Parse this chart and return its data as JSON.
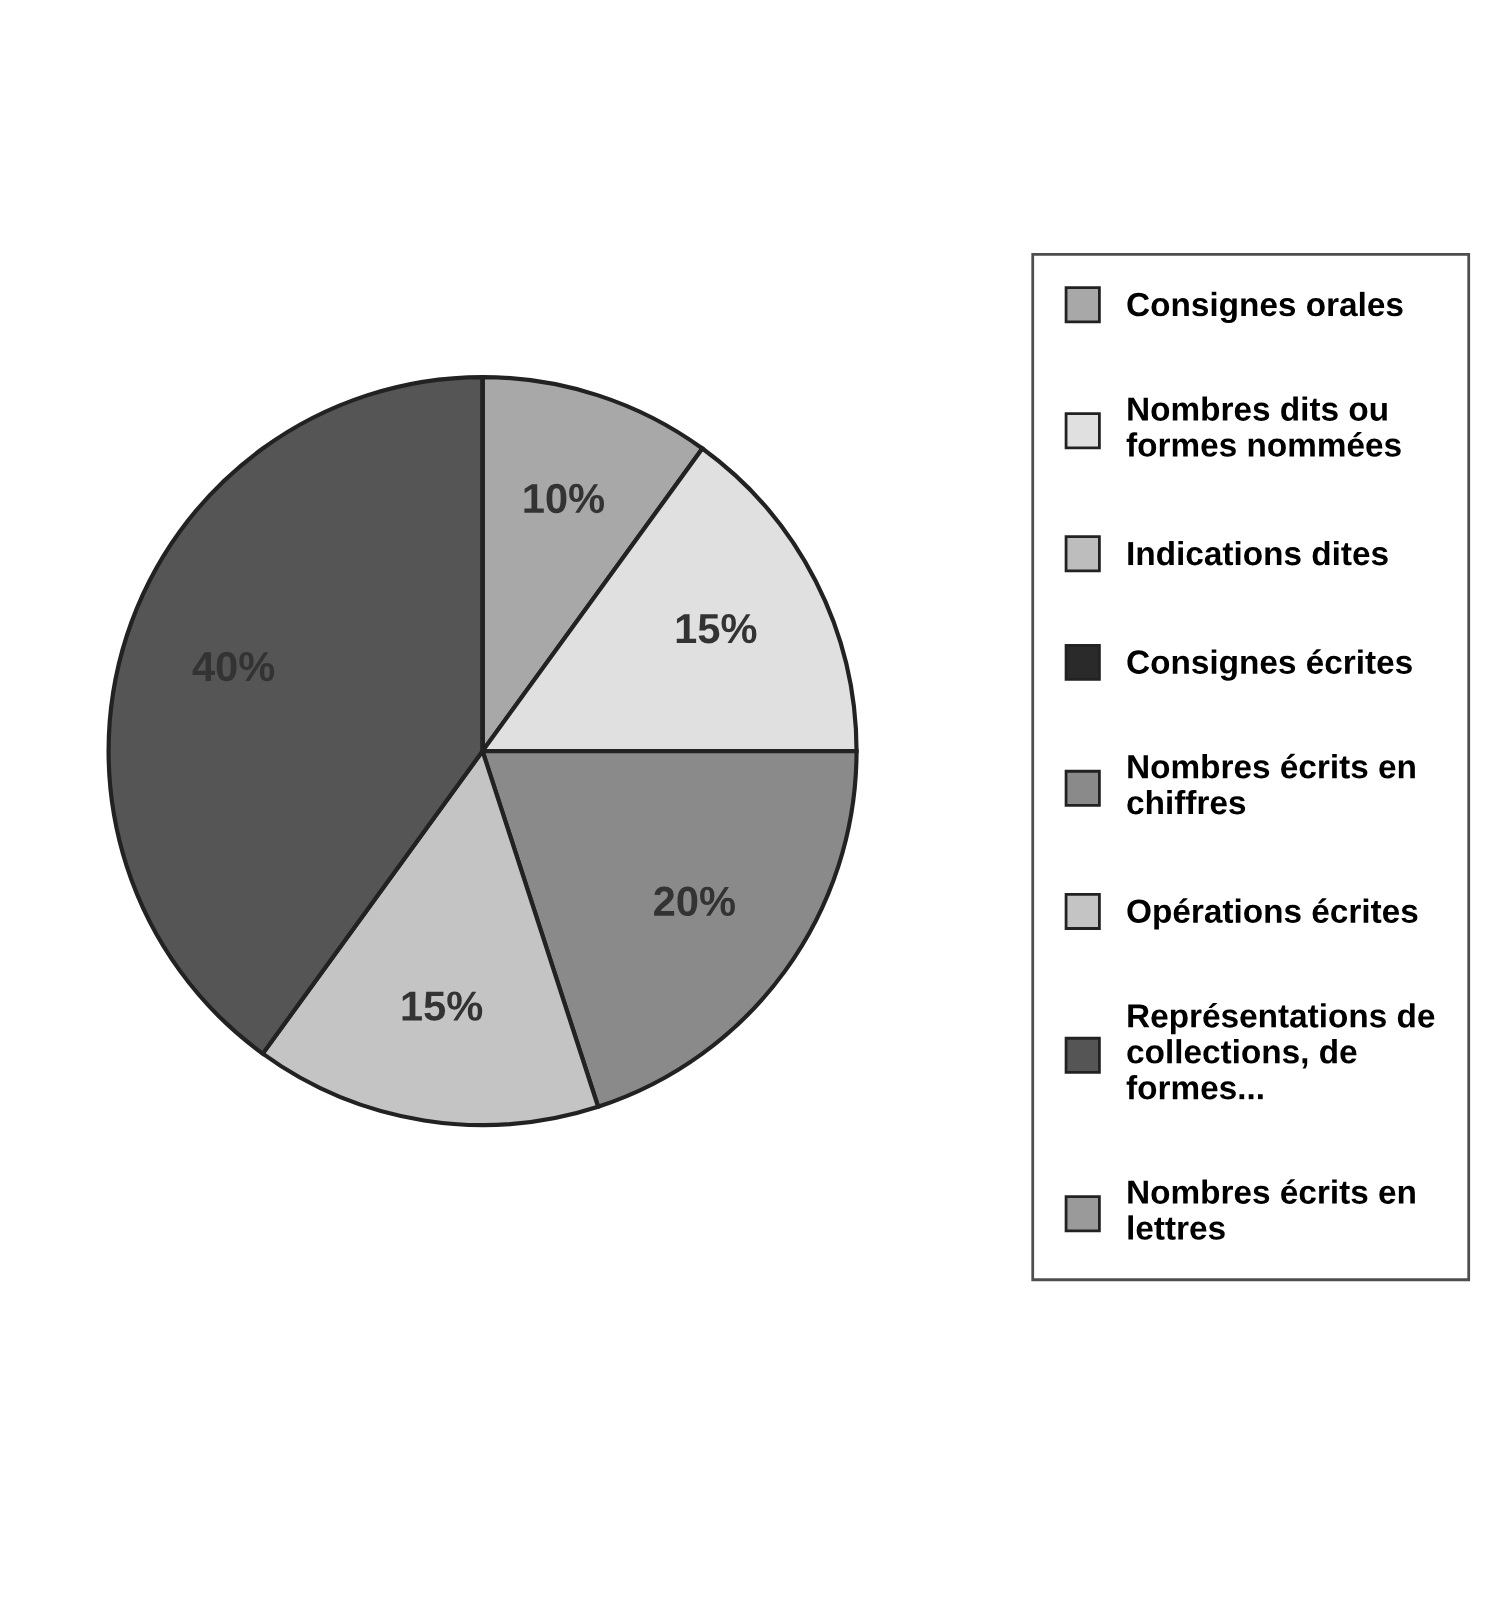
{
  "chart_data": {
    "type": "pie",
    "categories": [
      "Consignes orales",
      "Nombres dits ou\nformes nommées",
      "Indications dites",
      "Consignes écrites",
      "Nombres écrits en\nchiffres",
      "Opérations écrites",
      "Représentations de\ncollections, de\nformes...",
      "Nombres écrits en\nlettres"
    ],
    "values": [
      10,
      15,
      0,
      0,
      20,
      15,
      40,
      0
    ],
    "value_labels": [
      "10%",
      "15%",
      null,
      null,
      "20%",
      "15%",
      "40%",
      null
    ],
    "colors": [
      "#a8a8a8",
      "#e0e0e0",
      "#bdbdbd",
      "#2a2a2a",
      "#8a8a8a",
      "#c4c4c4",
      "#555555",
      "#9a9a9a"
    ],
    "legend": "right"
  }
}
